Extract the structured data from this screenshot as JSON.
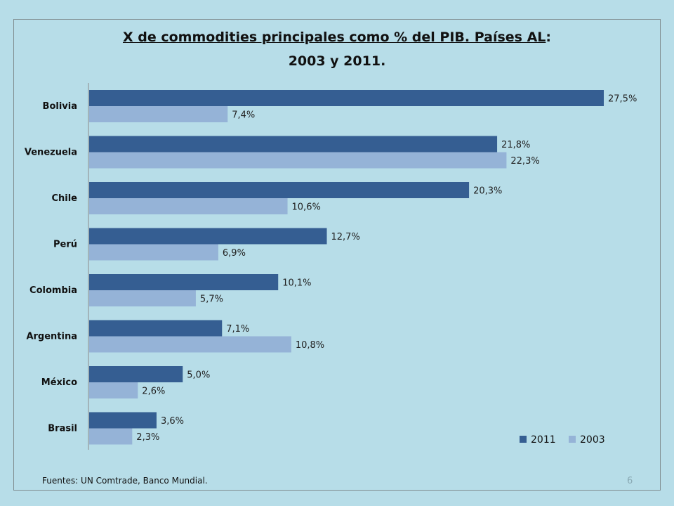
{
  "chart_title": {
    "line1": "X de commodities principales como % del PIB. Países AL",
    "line1_suffix": ":",
    "line2": "2003 y 2011."
  },
  "source": "Fuentes: UN Comtrade, Banco Mundial.",
  "page_number": "6",
  "chart_data": {
    "type": "bar",
    "orientation": "horizontal",
    "title": "X de commodities principales como % del PIB. Países AL: 2003 y 2011.",
    "categories": [
      "Bolivia",
      "Venezuela",
      "Chile",
      "Perú",
      "Colombia",
      "Argentina",
      "México",
      "Brasil"
    ],
    "series": [
      {
        "name": "2011",
        "values": [
          27.5,
          21.8,
          20.3,
          12.7,
          10.1,
          7.1,
          5.0,
          3.6
        ],
        "labels": [
          "27,5%",
          "21,8%",
          "20,3%",
          "12,7%",
          "10,1%",
          "7,1%",
          "5,0%",
          "3,6%"
        ],
        "color": "#355e92"
      },
      {
        "name": "2003",
        "values": [
          7.4,
          22.3,
          10.6,
          6.9,
          5.7,
          10.8,
          2.6,
          2.3
        ],
        "labels": [
          "7,4%",
          "22,3%",
          "10,6%",
          "6,9%",
          "5,7%",
          "10,8%",
          "2,6%",
          "2,3%"
        ],
        "color": "#95b3d7"
      }
    ],
    "xlim": [
      0,
      27.5
    ],
    "grid": false,
    "legend_position": "bottom-right"
  }
}
